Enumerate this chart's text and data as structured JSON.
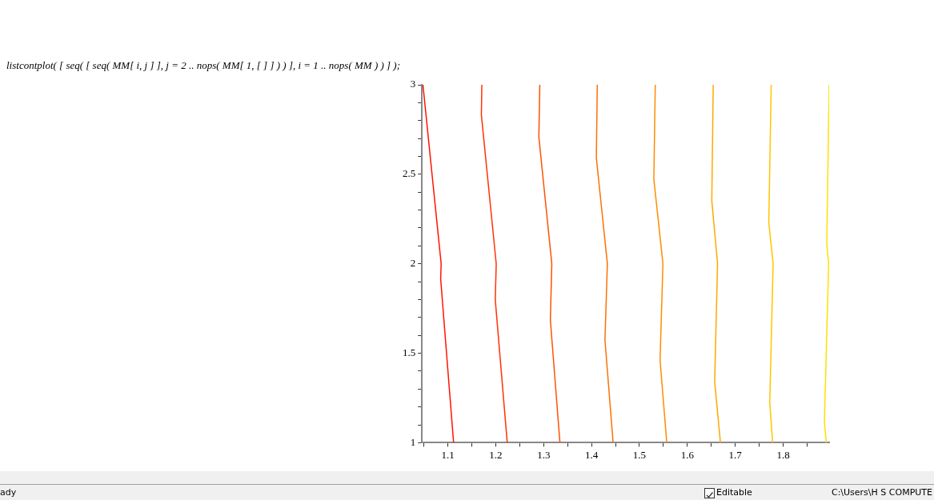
{
  "chart_data": {
    "type": "line",
    "marker": "none",
    "grid": false,
    "legend": false,
    "xlim": [
      1.046,
      1.896
    ],
    "ylim": [
      1,
      3
    ],
    "xticks": [
      {
        "value": 1.05,
        "label": null
      },
      1.1,
      {
        "value": 1.15,
        "label": null
      },
      1.2,
      {
        "value": 1.25,
        "label": null
      },
      1.3,
      {
        "value": 1.35,
        "label": null
      },
      1.4,
      {
        "value": 1.45,
        "label": null
      },
      1.5,
      {
        "value": 1.55,
        "label": null
      },
      1.6,
      {
        "value": 1.65,
        "label": null
      },
      1.7,
      {
        "value": 1.75,
        "label": null
      },
      1.8,
      {
        "value": 1.85,
        "label": null
      }
    ],
    "yticks": [
      1,
      {
        "value": 1.1,
        "label": null
      },
      {
        "value": 1.2,
        "label": null
      },
      {
        "value": 1.3,
        "label": null
      },
      {
        "value": 1.4,
        "label": null
      },
      1.5,
      {
        "value": 1.6,
        "label": null
      },
      {
        "value": 1.7,
        "label": null
      },
      {
        "value": 1.8,
        "label": null
      },
      {
        "value": 1.9,
        "label": null
      },
      2,
      {
        "value": 2.1,
        "label": null
      },
      {
        "value": 2.2,
        "label": null
      },
      {
        "value": 2.3,
        "label": null
      },
      {
        "value": 2.4,
        "label": null
      },
      2.5,
      {
        "value": 2.6,
        "label": null
      },
      {
        "value": 2.7,
        "label": null
      },
      {
        "value": 2.8,
        "label": null
      },
      {
        "value": 2.9,
        "label": null
      },
      3
    ],
    "series": [
      {
        "color": "#ff1400",
        "x": [
          1.112,
          1.085,
          1.086,
          1.048
        ],
        "values": [
          1,
          1.916,
          2,
          3
        ]
      },
      {
        "color": "#ff3200",
        "x": [
          1.224,
          1.199,
          1.201,
          1.17,
          1.171
        ],
        "values": [
          1,
          1.799,
          2,
          2.832,
          3
        ]
      },
      {
        "color": "#ff5200",
        "x": [
          1.334,
          1.314,
          1.317,
          1.29,
          1.292
        ],
        "values": [
          1,
          1.686,
          2,
          2.708,
          3
        ]
      },
      {
        "color": "#ff7000",
        "x": [
          1.445,
          1.428,
          1.433,
          1.41,
          1.412
        ],
        "values": [
          1,
          1.574,
          2,
          2.592,
          3
        ]
      },
      {
        "color": "#ff8c00",
        "x": [
          1.557,
          1.543,
          1.549,
          1.53,
          1.533
        ],
        "values": [
          1,
          1.462,
          2,
          2.473,
          3
        ]
      },
      {
        "color": "#ffa800",
        "x": [
          1.669,
          1.657,
          1.663,
          1.651,
          1.654
        ],
        "values": [
          1,
          1.342,
          2,
          2.353,
          3
        ]
      },
      {
        "color": "#ffc400",
        "x": [
          1.778,
          1.772,
          1.779,
          1.77,
          1.775
        ],
        "values": [
          1,
          1.225,
          2,
          2.228,
          3
        ]
      },
      {
        "color": "#ffe000",
        "x": [
          1.89,
          1.886,
          1.895,
          1.891,
          1.896
        ],
        "values": [
          1,
          1.117,
          2,
          2.109,
          3
        ]
      }
    ],
    "annotations": [
      "listcontplot( [ seq( [ seq( MM[ i, j ] ], j = 2 .. nops( MM[ 1, [ ] ] ) ) ], i = 1 .. nops( MM ) ) ] );",
      "ady",
      "Editable",
      "C:\\Users\\H  S COMPUTE"
    ]
  }
}
